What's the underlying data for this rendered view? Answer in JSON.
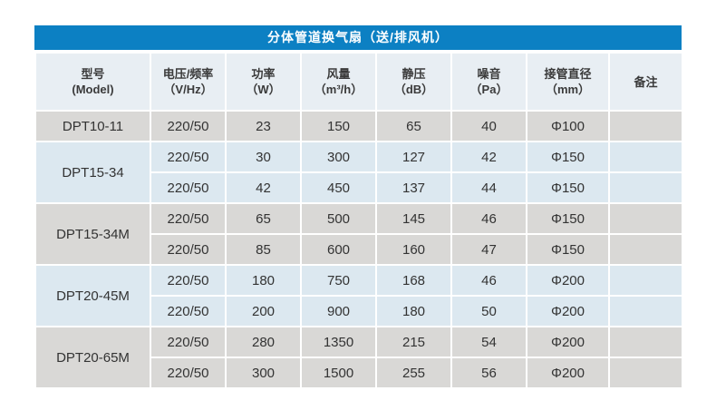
{
  "title": "分体管道换气扇（送/排风机）",
  "colors": {
    "title_bg": "#0c80c3",
    "header_bg": "#e8eef3",
    "gray_row": "#d9d8d6",
    "blue_row": "#dce8f0",
    "text": "#333333"
  },
  "table": {
    "headers": [
      {
        "line1": "型号",
        "line2": "(Model)"
      },
      {
        "line1": "电压/频率",
        "line2": "（V/Hz）"
      },
      {
        "line1": "功率",
        "line2": "（W）"
      },
      {
        "line1": "风量",
        "line2": "（m³/h）"
      },
      {
        "line1": "静压",
        "line2": "（dB）"
      },
      {
        "line1": "噪音",
        "line2": "（Pa）"
      },
      {
        "line1": "接管直径",
        "line2": "（mm）"
      },
      {
        "line1": "备注",
        "line2": ""
      }
    ],
    "groups": [
      {
        "model": "DPT10-11",
        "rows": [
          [
            "220/50",
            "23",
            "150",
            "65",
            "40",
            "Φ100",
            ""
          ]
        ]
      },
      {
        "model": "DPT15-34",
        "rows": [
          [
            "220/50",
            "30",
            "300",
            "127",
            "42",
            "Φ150",
            ""
          ],
          [
            "220/50",
            "42",
            "450",
            "137",
            "44",
            "Φ150",
            ""
          ]
        ]
      },
      {
        "model": "DPT15-34M",
        "rows": [
          [
            "220/50",
            "65",
            "500",
            "145",
            "46",
            "Φ150",
            ""
          ],
          [
            "220/50",
            "85",
            "600",
            "160",
            "47",
            "Φ150",
            ""
          ]
        ]
      },
      {
        "model": "DPT20-45M",
        "rows": [
          [
            "220/50",
            "180",
            "750",
            "168",
            "46",
            "Φ200",
            ""
          ],
          [
            "220/50",
            "200",
            "900",
            "180",
            "50",
            "Φ200",
            ""
          ]
        ]
      },
      {
        "model": "DPT20-65M",
        "rows": [
          [
            "220/50",
            "280",
            "1350",
            "215",
            "54",
            "Φ200",
            ""
          ],
          [
            "220/50",
            "300",
            "1500",
            "255",
            "56",
            "Φ200",
            ""
          ]
        ]
      }
    ]
  }
}
